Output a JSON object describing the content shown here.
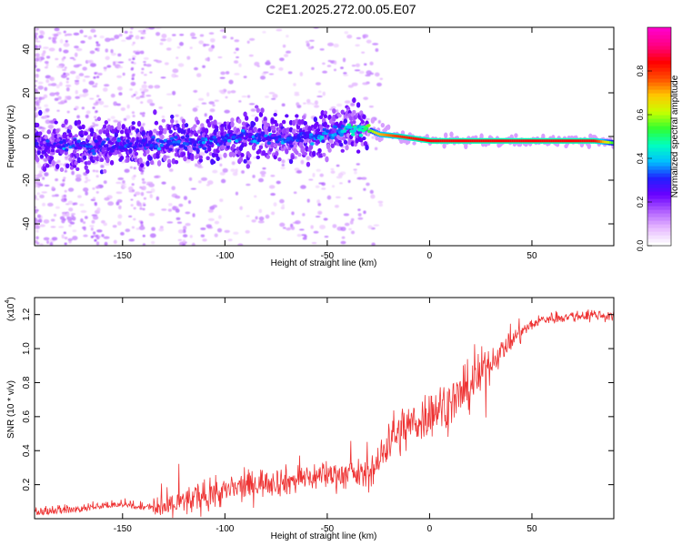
{
  "figure": {
    "title": "C2E1.2025.272.00.05.E07"
  },
  "chart_data": [
    {
      "type": "heatmap",
      "name": "spectrogram",
      "xlabel": "Height of straight line (km)",
      "ylabel": "Frequency (Hz)",
      "xlim": [
        -193,
        90
      ],
      "ylim": [
        -50,
        50
      ],
      "xticks": [
        -150,
        -100,
        -50,
        0,
        50
      ],
      "xtick_labels": [
        "-150",
        "-100",
        "-50",
        "0",
        "50"
      ],
      "yticks": [
        -40,
        -20,
        0,
        20,
        40
      ],
      "ytick_labels": [
        "-40",
        "-20",
        "0",
        "20",
        "40"
      ],
      "colorbar": {
        "label": "Normalized spectral amplitude",
        "range": [
          0,
          1
        ],
        "ticks": [
          0.0,
          0.2,
          0.4,
          0.6,
          0.8
        ],
        "tick_labels": [
          "0.0",
          "0.2",
          "0.4",
          "0.6",
          "0.8"
        ],
        "colors": [
          "#ffffff",
          "#e6b8ff",
          "#b060ff",
          "#6a00ff",
          "#2020ff",
          "#00c0ff",
          "#00ffc0",
          "#30ff30",
          "#c8ff00",
          "#ffc800",
          "#ff5000",
          "#ff0000",
          "#ff0080",
          "#ff00c8"
        ]
      },
      "signal_trace": {
        "height_km": [
          -190,
          -170,
          -150,
          -130,
          -110,
          -90,
          -70,
          -55,
          -45,
          -35,
          -30,
          -25,
          -15,
          0,
          20,
          50,
          80,
          90
        ],
        "frequency_hz": [
          -4,
          -4,
          -4,
          -3,
          -2,
          0,
          -1,
          0,
          3,
          4,
          3,
          1,
          0,
          -2,
          -2,
          -2,
          -2,
          -3
        ],
        "amplitude": [
          0.25,
          0.28,
          0.28,
          0.3,
          0.3,
          0.3,
          0.3,
          0.32,
          0.35,
          0.45,
          0.55,
          0.7,
          0.8,
          0.85,
          0.85,
          0.85,
          0.85,
          0.5
        ]
      }
    },
    {
      "type": "line",
      "name": "snr",
      "xlabel": "Height of straight line (km)",
      "ylabel": "SNR (10 * v/v)",
      "scale_label": "(x10",
      "scale_exponent": "4",
      "xlim": [
        -193,
        90
      ],
      "ylim": [
        0,
        1.3
      ],
      "xticks": [
        -150,
        -100,
        -50,
        0,
        50
      ],
      "xtick_labels": [
        "-150",
        "-100",
        "-50",
        "0",
        "50"
      ],
      "yticks": [
        0.2,
        0.4,
        0.6,
        0.8,
        1.0,
        1.2
      ],
      "ytick_labels": [
        "0.2",
        "0.4",
        "0.6",
        "0.8",
        "1.0",
        "1.2"
      ],
      "color": "#ee3333",
      "series": [
        {
          "name": "SNR",
          "x": [
            -193,
            -180,
            -170,
            -160,
            -150,
            -140,
            -130,
            -120,
            -110,
            -100,
            -90,
            -80,
            -70,
            -60,
            -50,
            -40,
            -30,
            -25,
            -20,
            -15,
            -10,
            -5,
            0,
            5,
            10,
            15,
            20,
            25,
            30,
            35,
            40,
            45,
            50,
            55,
            60,
            70,
            80,
            90
          ],
          "y": [
            0.02,
            0.03,
            0.04,
            0.06,
            0.07,
            0.05,
            0.06,
            0.1,
            0.13,
            0.16,
            0.19,
            0.22,
            0.22,
            0.24,
            0.26,
            0.26,
            0.26,
            0.32,
            0.48,
            0.5,
            0.55,
            0.58,
            0.62,
            0.66,
            0.68,
            0.72,
            0.78,
            0.85,
            0.92,
            0.98,
            1.05,
            1.1,
            1.14,
            1.17,
            1.18,
            1.19,
            1.2,
            1.19
          ]
        }
      ]
    }
  ]
}
